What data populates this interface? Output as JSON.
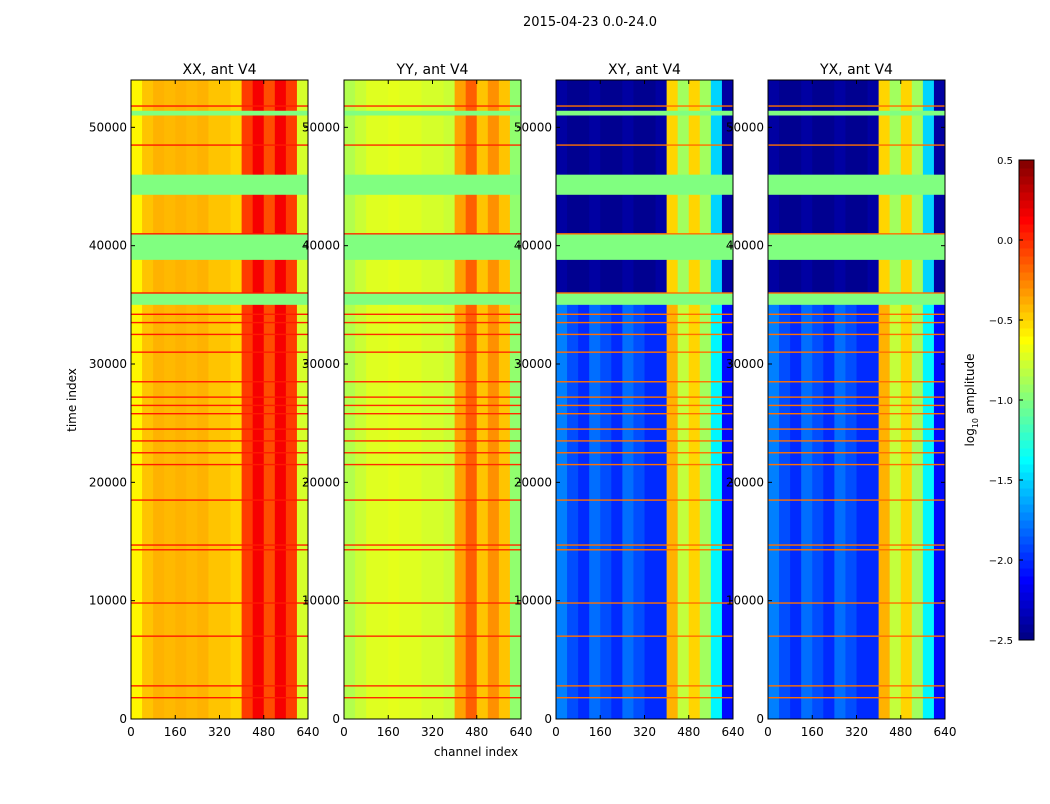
{
  "chart_data": {
    "type": "heatmap",
    "suptitle": "2015-04-23 0.0-24.0",
    "xlabel": "channel index",
    "ylabel": "time index",
    "xlim": [
      0,
      640
    ],
    "ylim": [
      0,
      54000
    ],
    "xticks": [
      0,
      160,
      320,
      480,
      640
    ],
    "xtick_labels": [
      "0",
      "160",
      "320",
      "480",
      "640"
    ],
    "yticks": [
      0,
      10000,
      20000,
      30000,
      40000,
      50000
    ],
    "ytick_labels": [
      "0",
      "10000",
      "20000",
      "30000",
      "40000",
      "50000"
    ],
    "colormap": "jet",
    "colorbar": {
      "label_main": "log",
      "label_sub": "10",
      "label_rest": " amplitude",
      "range": [
        -2.5,
        0.5
      ],
      "ticks": [
        0.5,
        0.0,
        -0.5,
        -1.0,
        -1.5,
        -2.0,
        -2.5
      ],
      "tick_labels": [
        "0.5",
        "0.0",
        "−0.5",
        "−1.0",
        "−1.5",
        "−2.0",
        "−2.5"
      ]
    },
    "channel_bin_width": 40,
    "flagged_value": -1.0,
    "flagged_time_ranges": [
      [
        35000,
        36000
      ],
      [
        38800,
        41000
      ],
      [
        44300,
        46000
      ],
      [
        51000,
        51400
      ]
    ],
    "rfi_times": [
      1800,
      2800,
      7000,
      9800,
      14300,
      14700,
      18500,
      21500,
      22500,
      23500,
      24500,
      25800,
      26500,
      27200,
      28500,
      31000,
      32500,
      33500,
      34200,
      36000,
      41000,
      48500,
      51800
    ],
    "panels": [
      {
        "title": "XX, ant V4",
        "rfi_value": 0.05,
        "channel_profile": [
          -0.6,
          -0.45,
          -0.4,
          -0.42,
          -0.4,
          -0.42,
          -0.4,
          -0.45,
          -0.45,
          -0.5,
          -0.05,
          0.15,
          -0.1,
          0.15,
          -0.05,
          -0.75
        ],
        "upper_profile": null
      },
      {
        "title": "YY, ant V4",
        "rfi_value": 0.0,
        "channel_profile": [
          -0.85,
          -0.78,
          -0.72,
          -0.72,
          -0.7,
          -0.72,
          -0.72,
          -0.75,
          -0.75,
          -0.78,
          -0.35,
          -0.15,
          -0.45,
          -0.3,
          -0.45,
          -0.95
        ],
        "upper_profile": null
      },
      {
        "title": "XY, ant V4",
        "rfi_value": -0.2,
        "channel_profile": [
          -1.75,
          -1.9,
          -2.0,
          -1.8,
          -1.9,
          -2.0,
          -1.8,
          -1.9,
          -2.0,
          -2.0,
          -0.4,
          -0.8,
          -0.5,
          -0.9,
          -1.4,
          -2.1
        ],
        "upper_profile": [
          -2.4,
          -2.45,
          -2.45,
          -2.4,
          -2.45,
          -2.45,
          -2.4,
          -2.45,
          -2.45,
          -2.4,
          -0.5,
          -0.9,
          -0.5,
          -0.9,
          -1.5,
          -2.4
        ]
      },
      {
        "title": "YX, ant V4",
        "rfi_value": -0.2,
        "channel_profile": [
          -1.75,
          -1.9,
          -2.0,
          -1.8,
          -1.9,
          -2.0,
          -1.8,
          -1.9,
          -2.0,
          -2.0,
          -0.4,
          -0.8,
          -0.5,
          -0.9,
          -1.4,
          -2.1
        ],
        "upper_profile": [
          -2.4,
          -2.45,
          -2.45,
          -2.4,
          -2.45,
          -2.45,
          -2.4,
          -2.45,
          -2.45,
          -2.4,
          -0.5,
          -0.9,
          -0.5,
          -0.9,
          -1.5,
          -2.4
        ]
      }
    ]
  }
}
